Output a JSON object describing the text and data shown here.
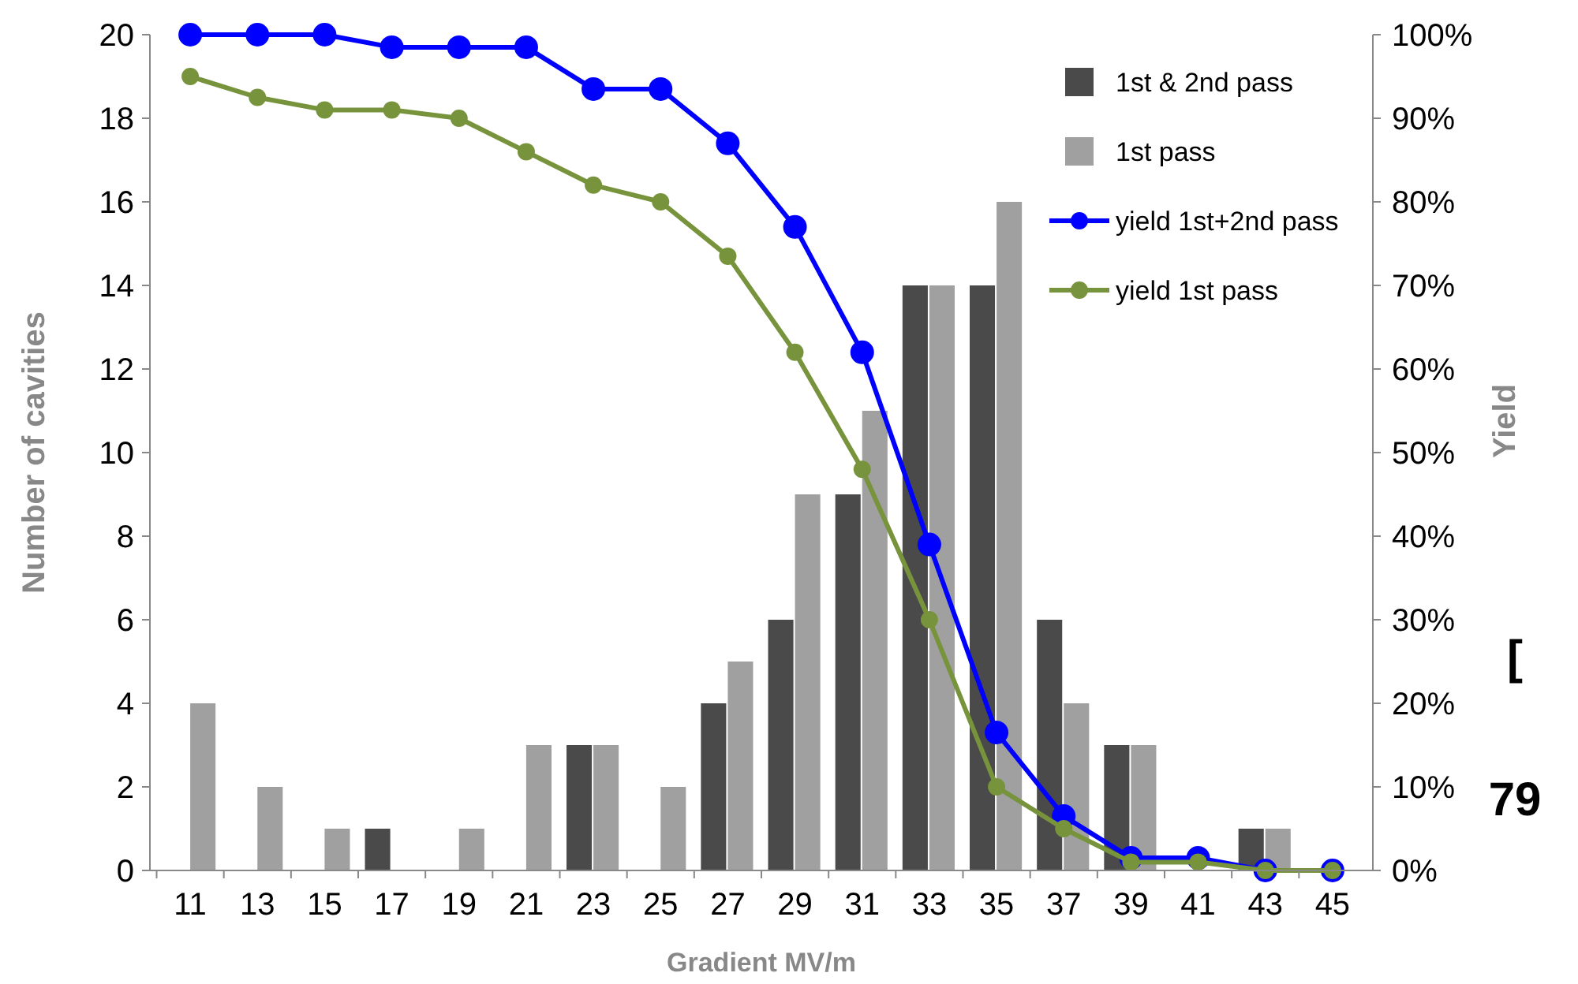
{
  "chart_data": {
    "type": "bar",
    "xlabel": "Gradient MV/m",
    "ylabel": "Number of cavities",
    "y2label": "Yield",
    "categories": [
      "11",
      "13",
      "15",
      "17",
      "19",
      "21",
      "23",
      "25",
      "27",
      "29",
      "31",
      "33",
      "35",
      "37",
      "39",
      "41",
      "43",
      "45"
    ],
    "series": [
      {
        "name": "1st & 2nd pass",
        "color": "#4a4a4a",
        "values": [
          0,
          0,
          0,
          1,
          0,
          0,
          3,
          0,
          4,
          6,
          9,
          14,
          14,
          6,
          3,
          0,
          1,
          0
        ]
      },
      {
        "name": "1st pass",
        "color": "#a0a0a0",
        "values": [
          4,
          2,
          1,
          0,
          1,
          3,
          3,
          2,
          5,
          9,
          11,
          14,
          16,
          4,
          3,
          0,
          1,
          0
        ]
      },
      {
        "name": "yield 1st+2nd pass",
        "type": "line",
        "axis": "y2",
        "color": "#0000ff",
        "values": [
          100,
          100,
          100,
          98.5,
          98.5,
          98.5,
          93.5,
          93.5,
          87,
          77,
          62,
          39,
          16.5,
          6.5,
          1.5,
          1.5,
          0,
          0
        ]
      },
      {
        "name": "yield 1st pass",
        "type": "line",
        "axis": "y2",
        "color": "#77933c",
        "values": [
          95,
          92.5,
          91,
          91,
          90,
          86,
          82,
          80,
          73.5,
          62,
          48,
          30,
          10,
          5,
          1,
          1,
          0,
          0
        ]
      }
    ],
    "ylim": [
      0,
      20
    ],
    "yticks": [
      0,
      2,
      4,
      6,
      8,
      10,
      12,
      14,
      16,
      18,
      20
    ],
    "y2lim": [
      0,
      100
    ],
    "y2ticks": [
      {
        "value": 0,
        "label": "0%"
      },
      {
        "value": 10,
        "label": "10%"
      },
      {
        "value": 20,
        "label": "20%"
      },
      {
        "value": 30,
        "label": "30%"
      },
      {
        "value": 40,
        "label": "40%"
      },
      {
        "value": 50,
        "label": "50%"
      },
      {
        "value": 60,
        "label": "60%"
      },
      {
        "value": 70,
        "label": "70%"
      },
      {
        "value": 80,
        "label": "80%"
      },
      {
        "value": 90,
        "label": "90%"
      },
      {
        "value": 100,
        "label": "100%"
      }
    ],
    "marker": "circle",
    "legend": "top right",
    "grid": false,
    "annotations": [
      "[",
      "79"
    ]
  }
}
